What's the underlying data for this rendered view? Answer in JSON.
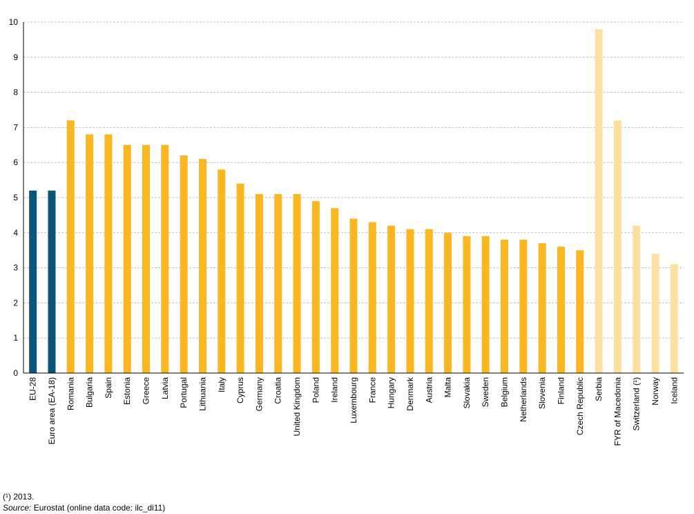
{
  "chart_data": {
    "type": "bar",
    "title": "",
    "xlabel": "",
    "ylabel": "",
    "ylim": [
      0,
      10
    ],
    "yticks": [
      0,
      1,
      2,
      3,
      4,
      5,
      6,
      7,
      8,
      9,
      10
    ],
    "grid": true,
    "categories": [
      "EU-28",
      "Euro area (EA-18)",
      "Romania",
      "Bulgaria",
      "Spain",
      "Estonia",
      "Greece",
      "Latvia",
      "Portugal",
      "Lithuania",
      "Italy",
      "Cyprus",
      "Germany",
      "Croatia",
      "United Kingdom",
      "Poland",
      "Ireland",
      "Luxembourg",
      "France",
      "Hungary",
      "Denmark",
      "Austria",
      "Malta",
      "Slovakia",
      "Sweden",
      "Belgium",
      "Netherlands",
      "Slovenia",
      "Finland",
      "Czech Republic",
      "Serbia",
      "FYR of Macedonia",
      "Switzerland (¹)",
      "Norway",
      "Iceland"
    ],
    "values": [
      5.2,
      5.2,
      7.2,
      6.8,
      6.8,
      6.5,
      6.5,
      6.5,
      6.2,
      6.1,
      5.8,
      5.4,
      5.1,
      5.1,
      5.1,
      4.9,
      4.7,
      4.4,
      4.3,
      4.2,
      4.1,
      4.1,
      4.0,
      3.9,
      3.9,
      3.8,
      3.8,
      3.7,
      3.6,
      3.5,
      9.8,
      7.2,
      4.2,
      3.4,
      3.1
    ],
    "colors": {
      "aggregate": "#0b5578",
      "member": "#fbb721",
      "other": "#fde09f"
    },
    "color_groups": [
      "aggregate",
      "aggregate",
      "member",
      "member",
      "member",
      "member",
      "member",
      "member",
      "member",
      "member",
      "member",
      "member",
      "member",
      "member",
      "member",
      "member",
      "member",
      "member",
      "member",
      "member",
      "member",
      "member",
      "member",
      "member",
      "member",
      "member",
      "member",
      "member",
      "member",
      "member",
      "other",
      "other",
      "other",
      "other",
      "other"
    ]
  },
  "footnote": "(¹) 2013.",
  "source": {
    "label": "Source:",
    "text": "Eurostat (online data code: ilc_di11)"
  }
}
